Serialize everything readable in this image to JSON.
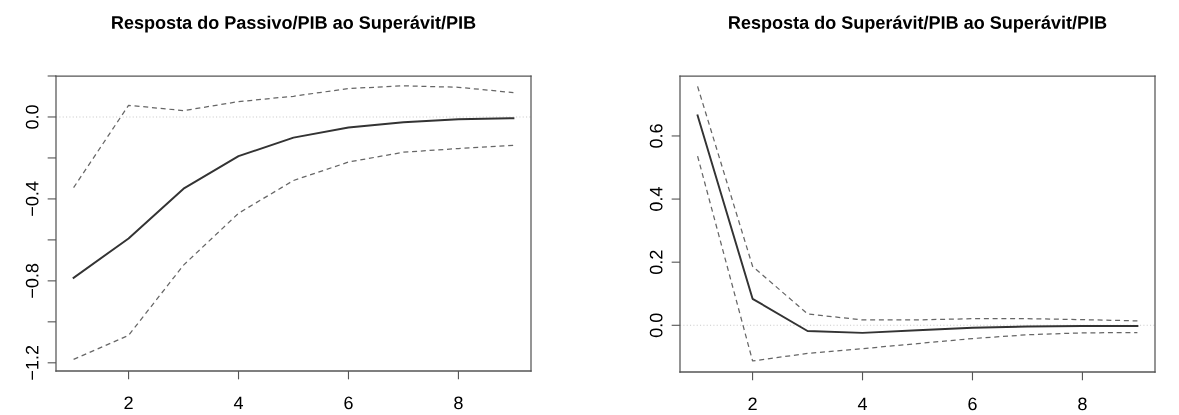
{
  "chart_data": [
    {
      "type": "line",
      "title": "Resposta do Passivo/PIB ao Superávit/PIB",
      "x": [
        1,
        2,
        3,
        4,
        5,
        6,
        7,
        8,
        9
      ],
      "xlim": [
        0.68,
        9.32
      ],
      "xticks": [
        2,
        4,
        6,
        8
      ],
      "ylim": [
        -1.24,
        0.2
      ],
      "yticks": [
        {
          "value": -1.2,
          "label": "−1.2"
        },
        {
          "value": -1.0,
          "label": null
        },
        {
          "value": -0.8,
          "label": "−0.8"
        },
        {
          "value": -0.6,
          "label": null
        },
        {
          "value": -0.4,
          "label": "−0.4"
        },
        {
          "value": -0.2,
          "label": null
        },
        {
          "value": 0.0,
          "label": "0.0"
        },
        {
          "value": 0.2,
          "label": null
        }
      ],
      "grid": false,
      "legend": false,
      "ref_lines": [
        {
          "axis": "y",
          "value": 0,
          "color": "#cccccc",
          "line_style": "dotted"
        }
      ],
      "series": [
        {
          "color": "#333333",
          "line_style": "solid",
          "values": [
            -0.785,
            -0.593,
            -0.35,
            -0.191,
            -0.101,
            -0.051,
            -0.026,
            -0.011,
            -0.006
          ]
        },
        {
          "color": "#666666",
          "line_style": "dashed",
          "values": [
            -0.345,
            0.057,
            0.031,
            0.075,
            0.101,
            0.139,
            0.152,
            0.145,
            0.119
          ]
        },
        {
          "color": "#666666",
          "line_style": "dashed",
          "values": [
            -1.183,
            -1.066,
            -0.723,
            -0.47,
            -0.31,
            -0.22,
            -0.172,
            -0.154,
            -0.138
          ]
        }
      ]
    },
    {
      "type": "line",
      "title": "Resposta do Superávit/PIB ao Superávit/PIB",
      "x": [
        1,
        2,
        3,
        4,
        5,
        6,
        7,
        8,
        9
      ],
      "xlim": [
        0.68,
        9.32
      ],
      "xticks": [
        2,
        4,
        6,
        8
      ],
      "ylim": [
        -0.148,
        0.79
      ],
      "yticks": [
        {
          "value": 0.0,
          "label": "0.0"
        },
        0.2,
        0.4,
        0.6
      ],
      "grid": false,
      "legend": false,
      "ref_lines": [
        {
          "axis": "y",
          "value": 0,
          "color": "#cccccc",
          "line_style": "dotted"
        }
      ],
      "series": [
        {
          "color": "#333333",
          "line_style": "solid",
          "values": [
            0.665,
            0.084,
            -0.018,
            -0.024,
            -0.016,
            -0.008,
            -0.004,
            -0.002,
            -0.002
          ]
        },
        {
          "color": "#666666",
          "line_style": "dashed",
          "values": [
            0.757,
            0.187,
            0.036,
            0.017,
            0.017,
            0.021,
            0.021,
            0.018,
            0.014
          ]
        },
        {
          "color": "#666666",
          "line_style": "dashed",
          "values": [
            0.536,
            -0.113,
            -0.089,
            -0.074,
            -0.058,
            -0.042,
            -0.03,
            -0.024,
            -0.023
          ]
        }
      ]
    }
  ]
}
